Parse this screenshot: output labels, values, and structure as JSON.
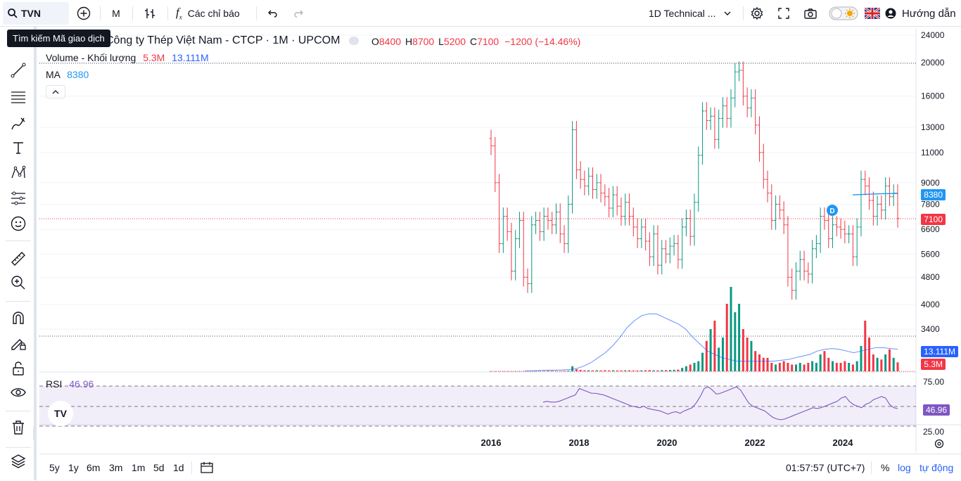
{
  "topbar": {
    "symbol": "TVN",
    "interval": "M",
    "indicators_label": "Các chỉ báo",
    "layout_name": "1D Technical ...",
    "help_label": "Hướng dẫn"
  },
  "tooltip": "Tìm kiếm Mã giao dịch",
  "legend": {
    "title": "Công ty Thép Việt Nam - CTCP · 1M · UPCOM",
    "open_label": "O",
    "open": "8400",
    "high_label": "H",
    "high": "8700",
    "low_label": "L",
    "low": "5200",
    "close_label": "C",
    "close": "7100",
    "change": "−1200 (−14.46%)",
    "volume_label": "Volume - Khối lượng",
    "volume": "5.3M",
    "volume_ma": "13.111M",
    "ma_label": "MA",
    "ma": "8380"
  },
  "rsi": {
    "label": "RSI",
    "value": "46.96"
  },
  "price_axis": [
    "24000",
    "20000",
    "16000",
    "13000",
    "11000",
    "9000",
    "7800",
    "6600",
    "5600",
    "4800",
    "4000",
    "3400"
  ],
  "price_labels": {
    "ma": "8380",
    "close": "7100",
    "vol_ma": "13.111M",
    "vol": "5.3M"
  },
  "rsi_axis": [
    "75.00",
    "25.00"
  ],
  "time_axis": [
    "2016",
    "2018",
    "2020",
    "2022",
    "2024"
  ],
  "event_marker": "D",
  "bottombar": {
    "ranges": [
      "5y",
      "1y",
      "6m",
      "3m",
      "1m",
      "5d",
      "1d"
    ],
    "clock": "01:57:57 (UTC+7)",
    "percent": "%",
    "log": "log",
    "auto": "tự động"
  },
  "colors": {
    "up": "#089981",
    "down": "#f23645",
    "ma": "#2962ff",
    "rsi": "#7e57c2",
    "accent": "#2962ff"
  },
  "chart_data": {
    "type": "ohlc",
    "title": "Công ty Thép Việt Nam - CTCP · 1M · UPCOM",
    "ylim": [
      3000,
      24000
    ],
    "yscale": "log",
    "closes": [
      11500,
      9000,
      6000,
      7200,
      6500,
      5000,
      6200,
      7000,
      4800,
      4600,
      6800,
      7000,
      6500,
      7200,
      7000,
      6800,
      7400,
      6400,
      6000,
      7800,
      12800,
      9800,
      9200,
      8800,
      9400,
      8600,
      9000,
      8400,
      8200,
      7600,
      8300,
      7700,
      7200,
      7900,
      7200,
      6700,
      6200,
      6700,
      6100,
      5500,
      6400,
      5200,
      5800,
      5600,
      5900,
      6000,
      5400,
      6700,
      7100,
      6300,
      7900,
      10800,
      14500,
      13600,
      14000,
      12000,
      13800,
      15000,
      13800,
      15800,
      18800,
      19000,
      16000,
      14800,
      15800,
      13200,
      11000,
      9200,
      8400,
      7000,
      7800,
      7500,
      6800,
      4800,
      4400,
      5000,
      5400,
      5000,
      4900,
      5800,
      6000,
      7200,
      7000,
      6200,
      6800,
      6700,
      6600,
      6400,
      6400,
      5500,
      6700,
      9200,
      8800,
      8000,
      7200,
      7800,
      7500,
      8800,
      8200,
      8400,
      7100
    ],
    "volume": [
      0.05,
      0.05,
      0.05,
      0.05,
      0.05,
      0.05,
      0.1,
      0.1,
      0.1,
      0.2,
      0.2,
      0.15,
      0.2,
      0.2,
      0.3,
      0.3,
      0.2,
      0.2,
      0.3,
      0.4,
      3,
      1.2,
      0.8,
      0.6,
      0.6,
      0.5,
      0.6,
      0.5,
      0.6,
      0.5,
      0.6,
      0.5,
      0.5,
      0.6,
      0.6,
      0.5,
      0.5,
      0.6,
      0.6,
      0.7,
      0.6,
      0.5,
      0.7,
      0.7,
      0.8,
      0.9,
      1,
      2,
      3,
      4,
      5,
      6,
      11,
      18,
      25,
      30,
      14,
      20,
      40,
      50,
      35,
      40,
      25,
      20,
      18,
      12,
      10,
      8,
      8,
      5,
      4,
      5,
      6,
      5,
      4,
      4,
      5,
      4,
      5,
      6,
      5,
      10,
      12,
      8,
      6,
      5,
      5,
      6,
      5,
      4,
      6,
      15,
      30,
      20,
      10,
      8,
      7,
      10,
      13,
      8,
      5.3
    ],
    "volume_ma": [
      0.2,
      0.3,
      0.5,
      0.6,
      0.7,
      0.8,
      1,
      1.5,
      3,
      5,
      8,
      11,
      15,
      20,
      26,
      30,
      33,
      34,
      34,
      32,
      30,
      28,
      25,
      20,
      16,
      12,
      10,
      8,
      7,
      6,
      6,
      6,
      6,
      6,
      6,
      6.5,
      7,
      8,
      9,
      10,
      12,
      13,
      13.5,
      13,
      12,
      11,
      12,
      13,
      14,
      14,
      13.5,
      13.1
    ],
    "rsi": [
      55,
      56,
      55,
      55,
      56,
      58,
      60,
      62,
      64,
      72,
      70,
      68,
      66,
      66,
      65,
      64,
      62,
      60,
      58,
      56,
      54,
      52,
      50,
      49,
      48,
      50,
      47,
      46,
      45,
      44,
      42,
      40,
      42,
      43,
      41,
      44,
      46,
      48,
      54,
      62,
      72,
      74,
      70,
      65,
      66,
      68,
      70,
      72,
      74,
      70,
      62,
      54,
      50,
      48,
      46,
      44,
      40,
      36,
      34,
      33,
      34,
      36,
      38,
      40,
      42,
      44,
      46,
      48,
      47,
      48,
      50,
      52,
      54,
      56,
      60,
      62,
      56,
      52,
      50,
      48,
      52,
      54,
      58,
      60,
      62,
      60,
      52,
      48,
      46.96
    ],
    "ma": [
      8300,
      8320,
      8340,
      8360,
      8370,
      8380
    ]
  }
}
